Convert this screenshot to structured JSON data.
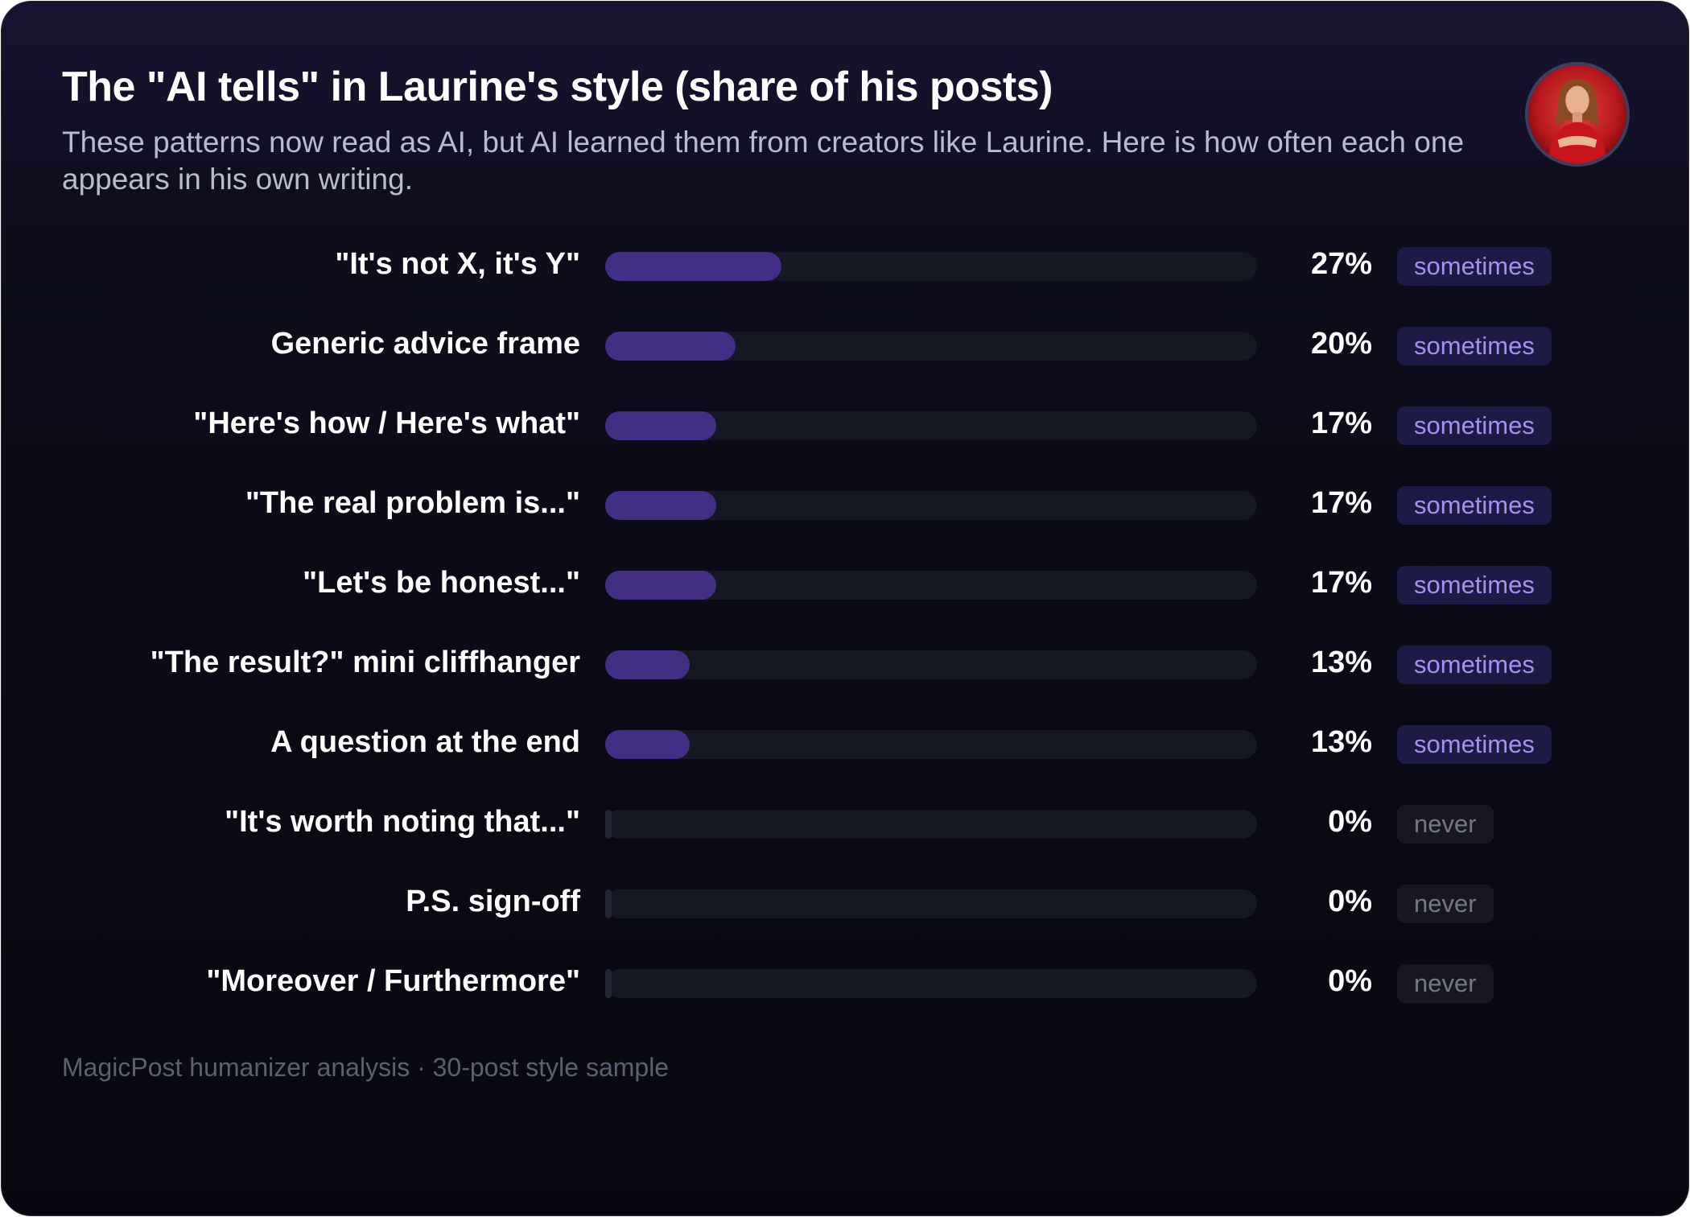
{
  "header": {
    "title": "The \"AI tells\" in Laurine's style (share of his posts)",
    "subtitle": "These patterns now read as AI, but AI learned them from creators like Laurine. Here is how often each one appears in his own writing.",
    "avatar_icon": "profile-photo-icon"
  },
  "chart_data": {
    "type": "bar",
    "orientation": "horizontal",
    "title": "The \"AI tells\" in Laurine's style (share of his posts)",
    "xlim": [
      0,
      100
    ],
    "categories": [
      "\"It's not X, it's Y\"",
      "Generic advice frame",
      "\"Here's how / Here's what\"",
      "\"The real problem is...\"",
      "\"Let's be honest...\"",
      "\"The result?\" mini cliffhanger",
      "A question at the end",
      "\"It's worth noting that...\"",
      "P.S. sign-off",
      "\"Moreover / Furthermore\""
    ],
    "values": [
      27,
      20,
      17,
      17,
      17,
      13,
      13,
      0,
      0,
      0
    ],
    "value_labels": [
      "27%",
      "20%",
      "17%",
      "17%",
      "17%",
      "13%",
      "13%",
      "0%",
      "0%",
      "0%"
    ],
    "tags": [
      "sometimes",
      "sometimes",
      "sometimes",
      "sometimes",
      "sometimes",
      "sometimes",
      "sometimes",
      "never",
      "never",
      "never"
    ],
    "colors": {
      "bar": "#432e86",
      "track": "#151722",
      "sometimes_text": "#a491f2",
      "never_text": "#767885"
    }
  },
  "footer": {
    "source": "MagicPost humanizer analysis · 30-post style sample"
  }
}
